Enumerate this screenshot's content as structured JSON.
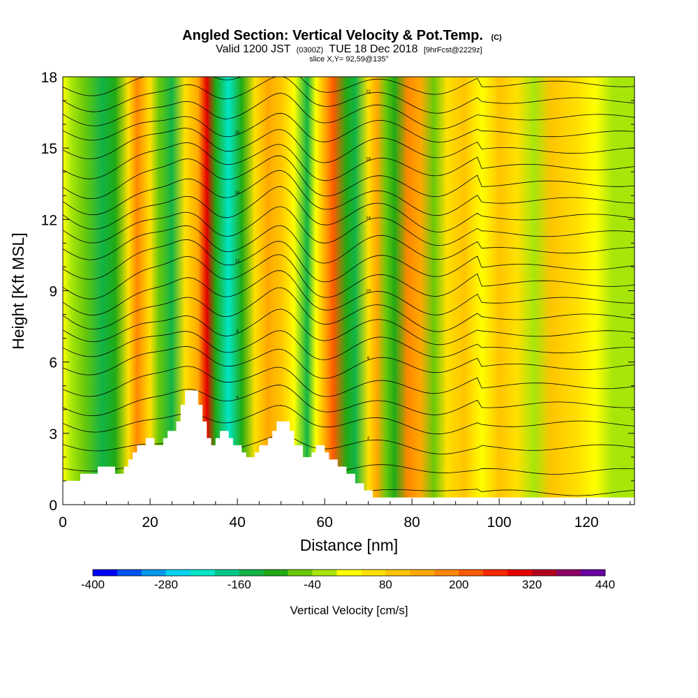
{
  "title": {
    "main": "Angled Section: Vertical Velocity & Pot.Temp.",
    "main_units": "(C)",
    "valid_prefix": "Valid 1200 JST",
    "valid_zulu": "(0300Z)",
    "valid_date": "TUE 18 Dec 2018",
    "forecast": "[9hrFcst@2229z]",
    "slice": "slice X,Y= 92,59@135°"
  },
  "chart_data": {
    "type": "heatmap",
    "xlabel": "Distance [nm]",
    "ylabel": "Height [Kft MSL]",
    "xlim": [
      0,
      131
    ],
    "ylim": [
      0,
      18
    ],
    "x_ticks": [
      0,
      20,
      40,
      60,
      80,
      100,
      120
    ],
    "y_ticks": [
      0,
      3,
      6,
      9,
      12,
      15,
      18
    ],
    "x_minor_step": 5,
    "y_minor_step": 1,
    "field": "Vertical Velocity",
    "colorbar": {
      "title": "Vertical Velocity [cm/s]",
      "min": -400,
      "max": 440,
      "step": 40,
      "labels": [
        -400,
        -280,
        -160,
        -40,
        80,
        200,
        320,
        440
      ],
      "colors": [
        "#0000ff",
        "#0055f0",
        "#0099ee",
        "#00d4f0",
        "#00e6c8",
        "#00c88c",
        "#11b446",
        "#20aa14",
        "#6ac80a",
        "#a8e60a",
        "#ffff00",
        "#ffe000",
        "#ffc400",
        "#ffa800",
        "#ff8800",
        "#ff5a00",
        "#ff2a00",
        "#e60000",
        "#b4001e",
        "#8c0064",
        "#6a00a0"
      ]
    },
    "vertical_velocity_bands": [
      {
        "x": 0,
        "value": 0
      },
      {
        "x": 2,
        "value": -20
      },
      {
        "x": 5,
        "value": -60
      },
      {
        "x": 9,
        "value": -130
      },
      {
        "x": 12,
        "value": -100
      },
      {
        "x": 15,
        "value": 60
      },
      {
        "x": 17,
        "value": 170
      },
      {
        "x": 20,
        "value": 40
      },
      {
        "x": 22,
        "value": -60
      },
      {
        "x": 25,
        "value": -150
      },
      {
        "x": 28,
        "value": 60
      },
      {
        "x": 31,
        "value": 150
      },
      {
        "x": 33,
        "value": 300
      },
      {
        "x": 35,
        "value": -120
      },
      {
        "x": 38,
        "value": -230
      },
      {
        "x": 41,
        "value": -110
      },
      {
        "x": 44,
        "value": 60
      },
      {
        "x": 47,
        "value": 120
      },
      {
        "x": 50,
        "value": 100
      },
      {
        "x": 53,
        "value": 20
      },
      {
        "x": 56,
        "value": -140
      },
      {
        "x": 58,
        "value": 0
      },
      {
        "x": 62,
        "value": 200
      },
      {
        "x": 65,
        "value": -120
      },
      {
        "x": 67,
        "value": -150
      },
      {
        "x": 70,
        "value": 60
      },
      {
        "x": 72,
        "value": 120
      },
      {
        "x": 74,
        "value": -80
      },
      {
        "x": 76,
        "value": -100
      },
      {
        "x": 79,
        "value": 170
      },
      {
        "x": 82,
        "value": 140
      },
      {
        "x": 85,
        "value": -60
      },
      {
        "x": 88,
        "value": 60
      },
      {
        "x": 92,
        "value": 100
      },
      {
        "x": 96,
        "value": 20
      },
      {
        "x": 100,
        "value": 80
      },
      {
        "x": 104,
        "value": 40
      },
      {
        "x": 108,
        "value": -10
      },
      {
        "x": 112,
        "value": 80
      },
      {
        "x": 118,
        "value": 40
      },
      {
        "x": 122,
        "value": 10
      },
      {
        "x": 126,
        "value": -20
      },
      {
        "x": 131,
        "value": -10
      }
    ],
    "terrain": [
      [
        0,
        1.0
      ],
      [
        4,
        1.0
      ],
      [
        4,
        1.3
      ],
      [
        8,
        1.3
      ],
      [
        8,
        1.6
      ],
      [
        12,
        1.6
      ],
      [
        12,
        1.3
      ],
      [
        14,
        1.3
      ],
      [
        14,
        1.6
      ],
      [
        15,
        1.6
      ],
      [
        15,
        1.9
      ],
      [
        16,
        1.9
      ],
      [
        16,
        2.2
      ],
      [
        17,
        2.2
      ],
      [
        17,
        2.5
      ],
      [
        19,
        2.5
      ],
      [
        19,
        2.8
      ],
      [
        21,
        2.8
      ],
      [
        21,
        2.5
      ],
      [
        23,
        2.5
      ],
      [
        23,
        2.8
      ],
      [
        24,
        2.8
      ],
      [
        24,
        3.1
      ],
      [
        26,
        3.1
      ],
      [
        26,
        3.5
      ],
      [
        27,
        3.5
      ],
      [
        27,
        4.2
      ],
      [
        28,
        4.2
      ],
      [
        28,
        4.8
      ],
      [
        31,
        4.8
      ],
      [
        31,
        4.2
      ],
      [
        32,
        4.2
      ],
      [
        32,
        3.5
      ],
      [
        33,
        3.5
      ],
      [
        33,
        2.8
      ],
      [
        34,
        2.8
      ],
      [
        34,
        2.5
      ],
      [
        35,
        2.5
      ],
      [
        35,
        2.8
      ],
      [
        36,
        2.8
      ],
      [
        36,
        3.1
      ],
      [
        38,
        3.1
      ],
      [
        38,
        2.8
      ],
      [
        39,
        2.8
      ],
      [
        39,
        2.5
      ],
      [
        41,
        2.5
      ],
      [
        41,
        2.2
      ],
      [
        42,
        2.2
      ],
      [
        42,
        2.0
      ],
      [
        44,
        2.0
      ],
      [
        44,
        2.2
      ],
      [
        45,
        2.2
      ],
      [
        45,
        2.5
      ],
      [
        47,
        2.5
      ],
      [
        47,
        2.8
      ],
      [
        48,
        2.8
      ],
      [
        48,
        3.1
      ],
      [
        49,
        3.1
      ],
      [
        49,
        3.5
      ],
      [
        52,
        3.5
      ],
      [
        52,
        3.1
      ],
      [
        53,
        3.1
      ],
      [
        53,
        2.5
      ],
      [
        55,
        2.5
      ],
      [
        55,
        2.0
      ],
      [
        57,
        2.0
      ],
      [
        57,
        2.2
      ],
      [
        58,
        2.2
      ],
      [
        58,
        2.5
      ],
      [
        60,
        2.5
      ],
      [
        60,
        2.2
      ],
      [
        61,
        2.2
      ],
      [
        61,
        1.9
      ],
      [
        63,
        1.9
      ],
      [
        63,
        1.6
      ],
      [
        65,
        1.6
      ],
      [
        65,
        1.3
      ],
      [
        67,
        1.3
      ],
      [
        67,
        0.9
      ],
      [
        69,
        0.9
      ],
      [
        69,
        0.6
      ],
      [
        71,
        0.6
      ],
      [
        71,
        0.3
      ],
      [
        131,
        0.3
      ]
    ],
    "theta_isolines": [
      {
        "base": 0.5,
        "amp": 0.2,
        "label": ""
      },
      {
        "base": 1.4,
        "amp": 0.4,
        "label": ""
      },
      {
        "base": 2.4,
        "amp": 0.6,
        "label": "2"
      },
      {
        "base": 3.4,
        "amp": 0.8,
        "label": ""
      },
      {
        "base": 4.2,
        "amp": 0.9,
        "label": "4"
      },
      {
        "base": 5.0,
        "amp": 1.0,
        "label": ""
      },
      {
        "base": 5.8,
        "amp": 1.1,
        "label": "6"
      },
      {
        "base": 6.5,
        "amp": 1.2,
        "label": ""
      },
      {
        "base": 7.2,
        "amp": 1.3,
        "label": "8"
      },
      {
        "base": 7.9,
        "amp": 1.4,
        "label": ""
      },
      {
        "base": 8.6,
        "amp": 1.4,
        "label": "10"
      },
      {
        "base": 9.3,
        "amp": 1.5,
        "label": ""
      },
      {
        "base": 10.0,
        "amp": 1.5,
        "label": "12"
      },
      {
        "base": 10.7,
        "amp": 1.5,
        "label": ""
      },
      {
        "base": 11.4,
        "amp": 1.5,
        "label": "14"
      },
      {
        "base": 12.1,
        "amp": 1.5,
        "label": ""
      },
      {
        "base": 12.8,
        "amp": 1.4,
        "label": "16"
      },
      {
        "base": 13.5,
        "amp": 1.4,
        "label": ""
      },
      {
        "base": 14.2,
        "amp": 1.3,
        "label": "18"
      },
      {
        "base": 14.9,
        "amp": 1.3,
        "label": ""
      },
      {
        "base": 15.6,
        "amp": 1.2,
        "label": "20"
      },
      {
        "base": 16.3,
        "amp": 1.2,
        "label": ""
      },
      {
        "base": 17.0,
        "amp": 1.1,
        "label": "22"
      },
      {
        "base": 17.7,
        "amp": 1.0,
        "label": ""
      }
    ]
  }
}
